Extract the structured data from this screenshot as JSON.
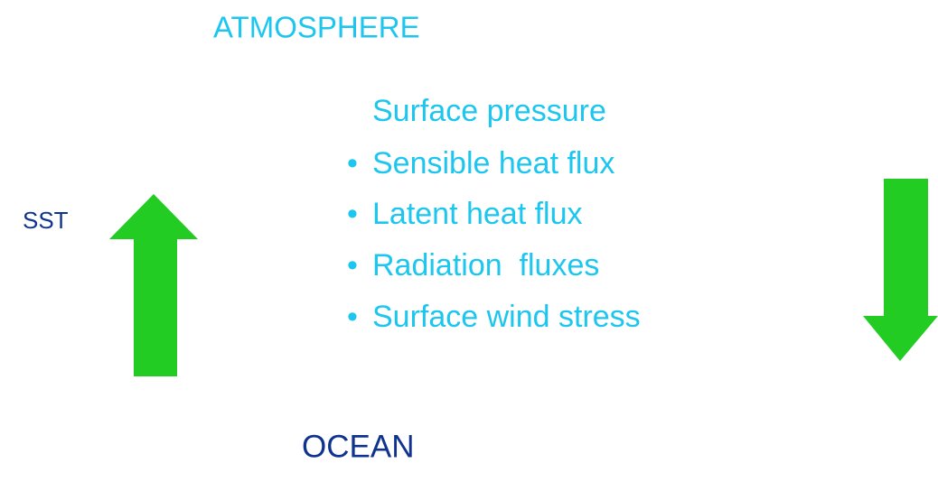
{
  "atmosphere": {
    "label": "ATMOSPHERE"
  },
  "fluxes": {
    "items": [
      "Surface pressure",
      "Sensible heat flux",
      "Latent heat flux",
      "Radiation  fluxes",
      "Surface wind stress"
    ]
  },
  "sst": {
    "label": "SST"
  },
  "ocean": {
    "label": "OCEAN"
  }
}
